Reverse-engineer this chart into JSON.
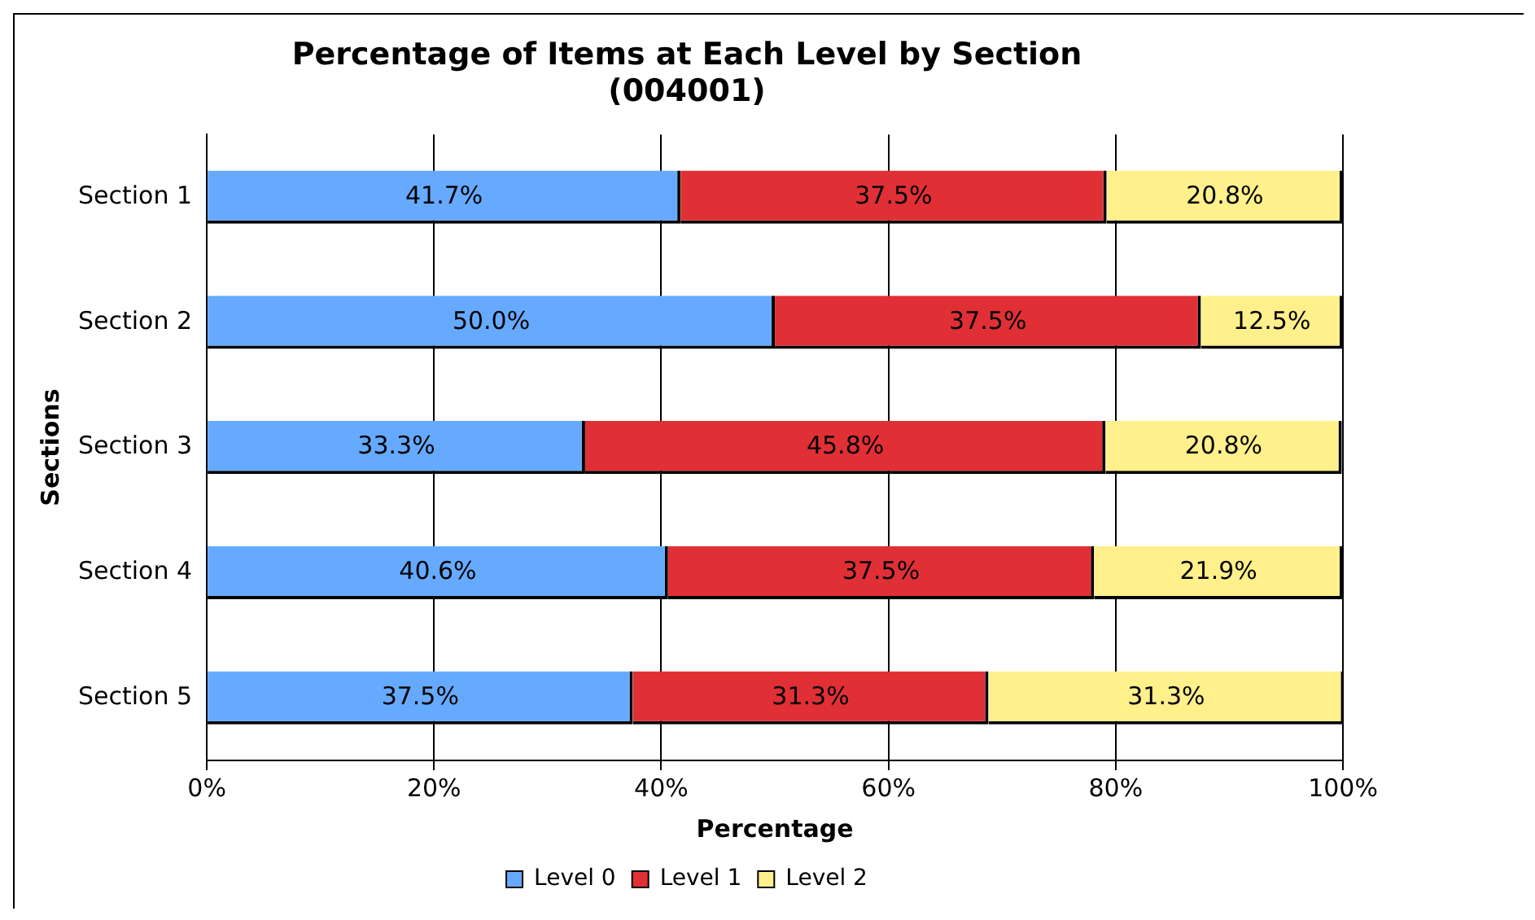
{
  "chart_data": {
    "type": "bar",
    "orientation": "horizontal",
    "stacked": true,
    "title": "Percentage of Items at Each Level by Section\n(004001)",
    "xlabel": "Percentage",
    "ylabel": "Sections",
    "categories": [
      "Section 1",
      "Section 2",
      "Section 3",
      "Section 4",
      "Section 5"
    ],
    "series": [
      {
        "name": "Level 0",
        "color": "#66aaff",
        "values": [
          41.7,
          50.0,
          33.3,
          40.6,
          37.5
        ],
        "value_labels": [
          "41.7%",
          "50.0%",
          "33.3%",
          "40.6%",
          "37.5%"
        ]
      },
      {
        "name": "Level 1",
        "color": "#e03036",
        "values": [
          37.5,
          37.5,
          45.8,
          37.5,
          31.3
        ],
        "value_labels": [
          "37.5%",
          "37.5%",
          "45.8%",
          "37.5%",
          "31.3%"
        ]
      },
      {
        "name": "Level 2",
        "color": "#fff08c",
        "values": [
          20.8,
          12.5,
          20.8,
          21.9,
          31.3
        ],
        "value_labels": [
          "20.8%",
          "12.5%",
          "20.8%",
          "21.9%",
          "31.3%"
        ]
      }
    ],
    "xlim": [
      0,
      100
    ],
    "xticks": [
      {
        "value": 0,
        "label": "0%"
      },
      {
        "value": 20,
        "label": "20%"
      },
      {
        "value": 40,
        "label": "40%"
      },
      {
        "value": 60,
        "label": "60%"
      },
      {
        "value": 80,
        "label": "80%"
      },
      {
        "value": 100,
        "label": "100%"
      }
    ],
    "grid": "x",
    "legend": "bottom"
  }
}
